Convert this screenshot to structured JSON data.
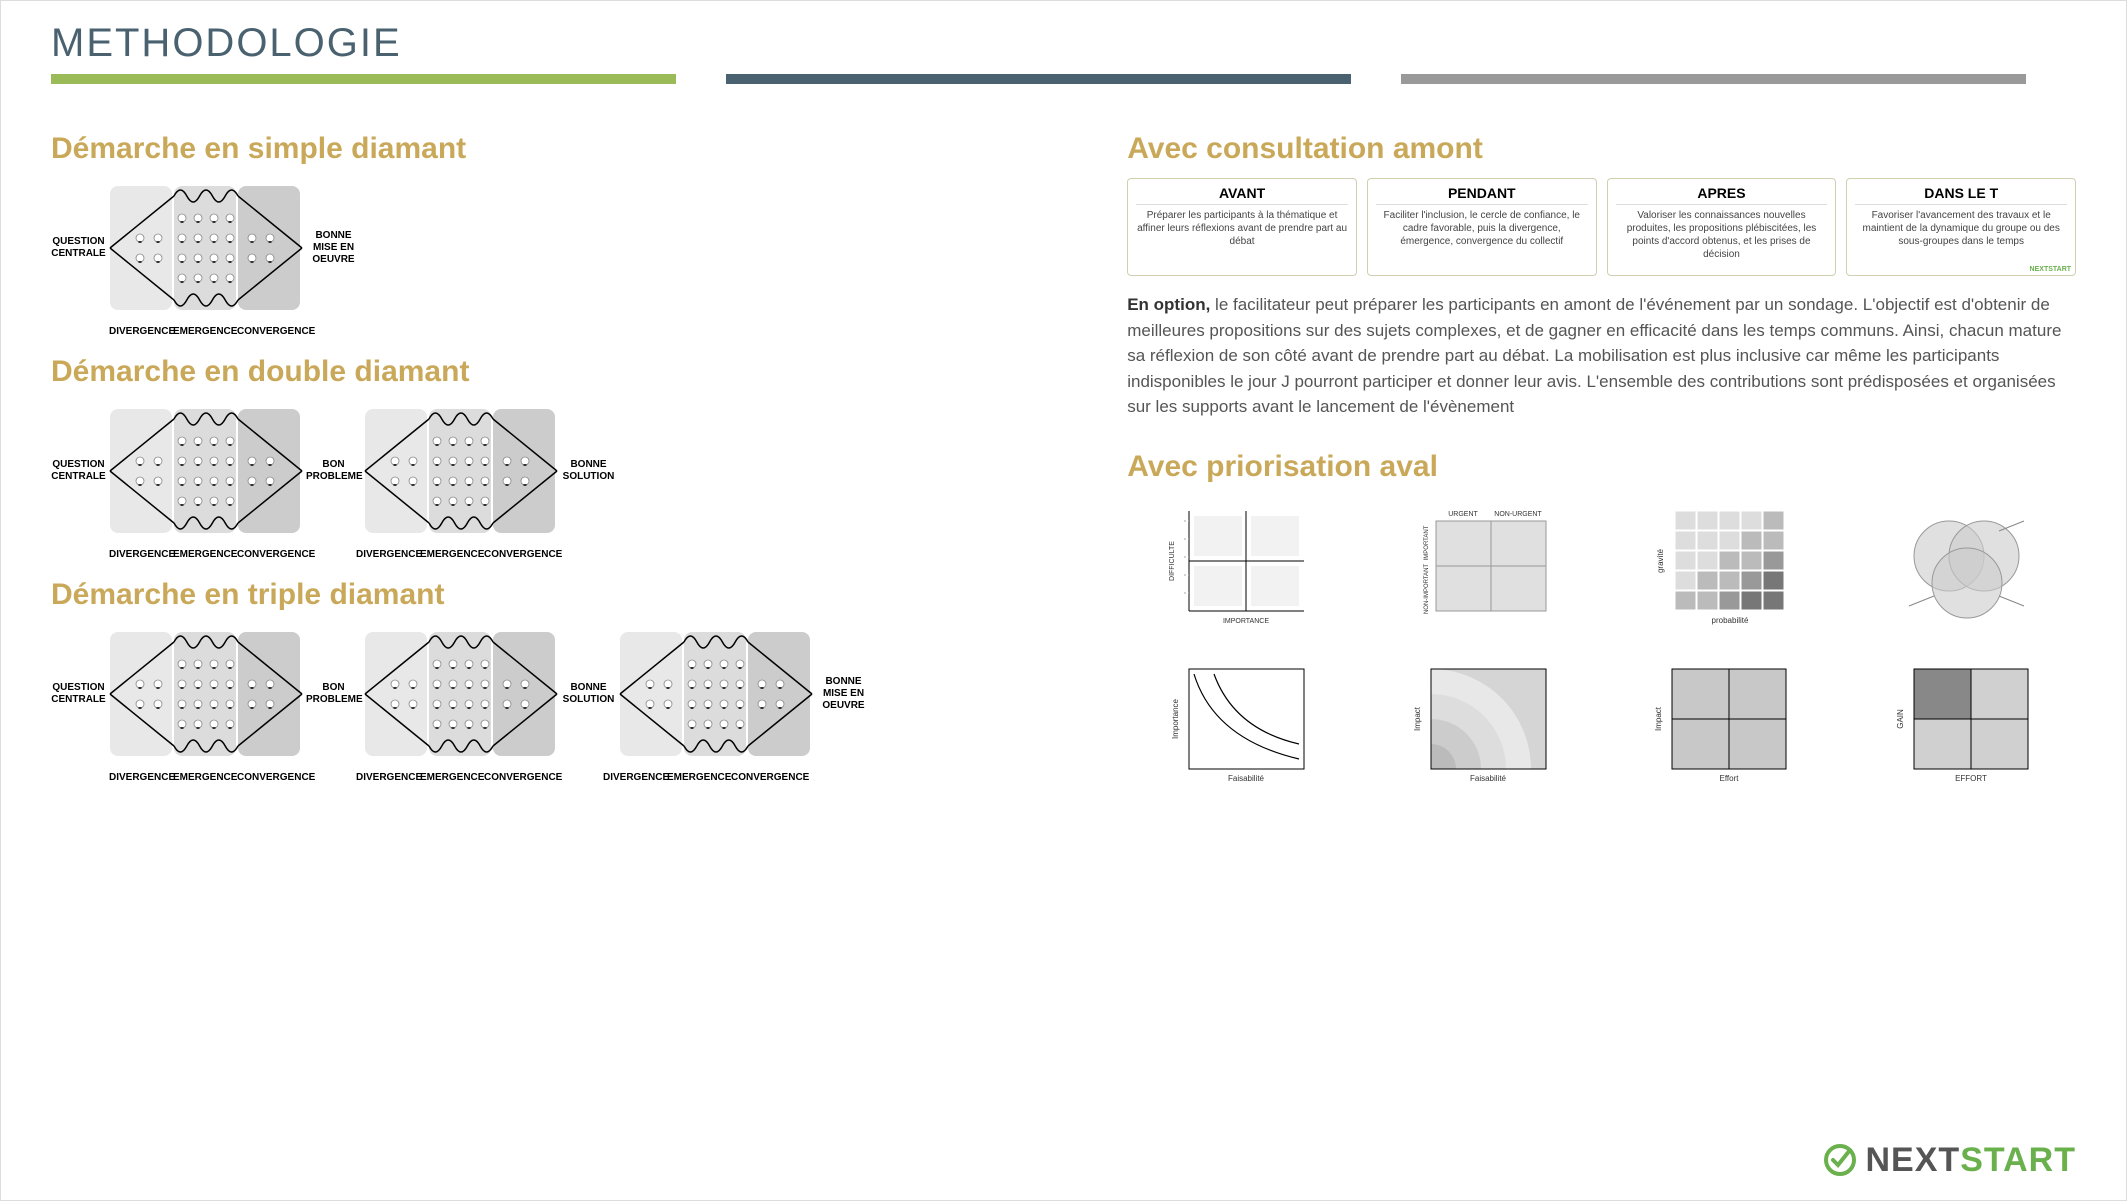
{
  "page_title": "METHODOLOGIE",
  "title_color": "#4a6270",
  "color_bars": [
    "#9bbb59",
    "#4a6270",
    "#999999"
  ],
  "accent_color": "#c9a959",
  "sections": {
    "simple": "Démarche en simple diamant",
    "double": "Démarche en double diamant",
    "triple": "Démarche en triple diamant",
    "consult": "Avec consultation amont",
    "prior": "Avec priorisation aval"
  },
  "diamond": {
    "start_label": "QUESTION\nCENTRALE",
    "end_single": "BONNE\nMISE EN\nOEUVRE",
    "mid_probleme": "BON\nPROBLEME",
    "mid_solution": "BONNE\nSOLUTION",
    "phases": [
      "DIVERGENCE",
      "EMERGENCE",
      "CONVERGENCE"
    ],
    "bg_light": "#e8e8e8",
    "bg_mid": "#dcdcdc",
    "bg_dark": "#cccccc",
    "line_color": "#000000"
  },
  "cards": [
    {
      "title": "AVANT",
      "body": "Préparer les participants à la thématique et affiner leurs réflexions avant de prendre part au débat"
    },
    {
      "title": "PENDANT",
      "body": "Faciliter l'inclusion, le cercle de confiance, le cadre favorable, puis la divergence, émergence, convergence du collectif"
    },
    {
      "title": "APRES",
      "body": "Valoriser les connaissances nouvelles produites, les propositions plébiscitées, les points d'accord obtenus, et les prises de décision"
    },
    {
      "title": "DANS LE T",
      "body": "Favoriser l'avancement des travaux et le maintient de la dynamique du groupe ou des sous-groupes dans le temps"
    }
  ],
  "card_logo": "NEXTSTART",
  "body_text_bold": "En option,",
  "body_text": " le facilitateur peut préparer les participants en amont de l'événement par un sondage. L'objectif est d'obtenir de meilleures propositions sur des sujets complexes, et de gagner en efficacité dans les temps communs. Ainsi, chacun mature sa réflexion de son côté avant de prendre part au débat. La mobilisation est plus inclusive car même les participants indisponibles le jour J pourront participer et donner leur avis. L'ensemble des contributions sont prédisposées et organisées sur les supports avant le lancement de l'évènement",
  "matrices": {
    "m1": {
      "xlabel": "IMPORTANCE",
      "ylabel": "DIFFICULTE",
      "quads": [
        "",
        "",
        "",
        ""
      ]
    },
    "m2": {
      "top_labels": [
        "URGENT",
        "NON-URGENT"
      ],
      "side_labels": [
        "IMPORTANT",
        "NON-IMPORTANT"
      ]
    },
    "m3": {
      "xlabel": "probabilité",
      "ylabel": "gravité"
    },
    "m4": {
      "center": "",
      "labels": [
        "",
        "",
        ""
      ]
    },
    "m5": {
      "xlabel": "Faisabilité",
      "ylabel": "Importance"
    },
    "m6": {
      "xlabel": "Faisabilité",
      "ylabel": "Impact"
    },
    "m7": {
      "xlabel": "Effort",
      "ylabel": "Impact"
    },
    "m8": {
      "xlabel": "EFFORT",
      "ylabel": "GAIN"
    }
  },
  "logo": {
    "next": "NEXT",
    "start": "START",
    "next_color": "#555555",
    "start_color": "#6ab04c"
  }
}
